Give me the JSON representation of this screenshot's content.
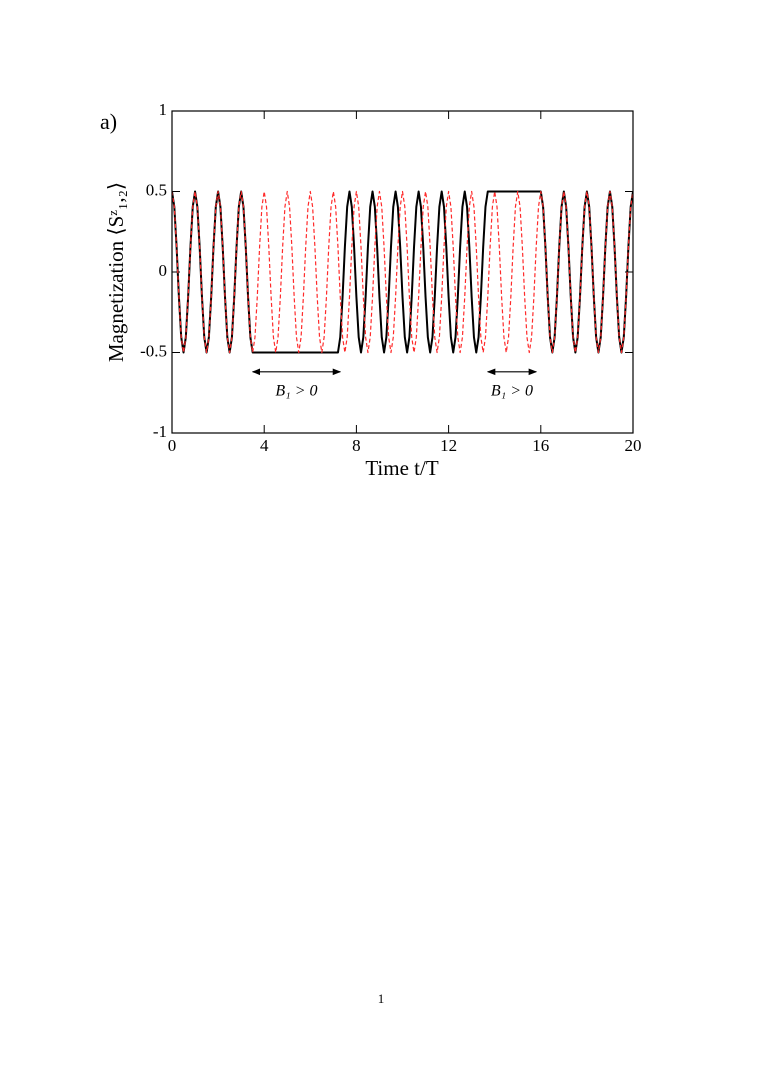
{
  "panel_label": "a)",
  "page_number": "1",
  "chart_data": {
    "type": "line",
    "xlabel": "Time t/T",
    "ylabel": "Magnetization ⟨Sᶻ₁,₂⟩",
    "xlim": [
      0,
      20
    ],
    "ylim": [
      -1,
      1
    ],
    "xticks": [
      0,
      4,
      8,
      12,
      16,
      20
    ],
    "yticks": [
      -1,
      -0.5,
      0,
      0.5,
      1
    ],
    "x": [
      0,
      0.1,
      0.2,
      0.3,
      0.4,
      0.5,
      0.6,
      0.7,
      0.8,
      0.9,
      1,
      1.1,
      1.2,
      1.3,
      1.4,
      1.5,
      1.6,
      1.7,
      1.8,
      1.9,
      2,
      2.1,
      2.2,
      2.3,
      2.4,
      2.5,
      2.6,
      2.7,
      2.8,
      2.9,
      3,
      3.1,
      3.2,
      3.3,
      3.4,
      3.5,
      3.6,
      3.7,
      3.8,
      3.9,
      4,
      4.1,
      4.2,
      4.3,
      4.4,
      4.5,
      4.6,
      4.7,
      4.8,
      4.9,
      5,
      5.1,
      5.2,
      5.3,
      5.4,
      5.5,
      5.6,
      5.7,
      5.8,
      5.9,
      6,
      6.1,
      6.2,
      6.3,
      6.4,
      6.5,
      6.6,
      6.7,
      6.8,
      6.9,
      7,
      7.1,
      7.2,
      7.3,
      7.4,
      7.5,
      7.6,
      7.7,
      7.8,
      7.9,
      8,
      8.1,
      8.2,
      8.3,
      8.4,
      8.5,
      8.6,
      8.7,
      8.8,
      8.9,
      9,
      9.1,
      9.2,
      9.3,
      9.4,
      9.5,
      9.6,
      9.7,
      9.8,
      9.9,
      10,
      10.1,
      10.2,
      10.3,
      10.4,
      10.5,
      10.6,
      10.7,
      10.8,
      10.9,
      11,
      11.1,
      11.2,
      11.3,
      11.4,
      11.5,
      11.6,
      11.7,
      11.8,
      11.9,
      12,
      12.1,
      12.2,
      12.3,
      12.4,
      12.5,
      12.6,
      12.7,
      12.8,
      12.9,
      13,
      13.1,
      13.2,
      13.3,
      13.4,
      13.5,
      13.6,
      13.7,
      13.8,
      13.9,
      14,
      14.1,
      14.2,
      14.3,
      14.4,
      14.5,
      14.6,
      14.7,
      14.8,
      14.9,
      15,
      15.1,
      15.2,
      15.3,
      15.4,
      15.5,
      15.6,
      15.7,
      15.8,
      15.9,
      16,
      16.1,
      16.2,
      16.3,
      16.4,
      16.5,
      16.6,
      16.7,
      16.8,
      16.9,
      17,
      17.1,
      17.2,
      17.3,
      17.4,
      17.5,
      17.6,
      17.7,
      17.8,
      17.9,
      18,
      18.1,
      18.2,
      18.3,
      18.4,
      18.5,
      18.6,
      18.7,
      18.8,
      18.9,
      19,
      19.1,
      19.2,
      19.3,
      19.4,
      19.5,
      19.6,
      19.7,
      19.8,
      19.9,
      20
    ],
    "series": [
      {
        "color": "#000000",
        "dash": false,
        "values": [
          0.5,
          0.405,
          0.155,
          -0.155,
          -0.405,
          -0.5,
          -0.405,
          -0.155,
          0.155,
          0.405,
          0.5,
          0.405,
          0.155,
          -0.155,
          -0.405,
          -0.5,
          -0.405,
          -0.155,
          0.155,
          0.405,
          0.5,
          0.405,
          0.155,
          -0.155,
          -0.405,
          -0.5,
          -0.405,
          -0.155,
          0.155,
          0.405,
          0.5,
          0.405,
          0.155,
          -0.155,
          -0.405,
          -0.5,
          -0.5,
          -0.5,
          -0.5,
          -0.5,
          -0.5,
          -0.5,
          -0.5,
          -0.5,
          -0.5,
          -0.5,
          -0.5,
          -0.5,
          -0.5,
          -0.5,
          -0.5,
          -0.5,
          -0.5,
          -0.5,
          -0.5,
          -0.5,
          -0.5,
          -0.5,
          -0.5,
          -0.5,
          -0.5,
          -0.5,
          -0.5,
          -0.5,
          -0.5,
          -0.5,
          -0.5,
          -0.5,
          -0.5,
          -0.5,
          -0.5,
          -0.5,
          -0.5,
          -0.405,
          -0.155,
          0.155,
          0.405,
          0.5,
          0.405,
          0.155,
          -0.155,
          -0.405,
          -0.5,
          -0.405,
          -0.155,
          0.155,
          0.405,
          0.5,
          0.405,
          0.155,
          -0.155,
          -0.405,
          -0.5,
          -0.405,
          -0.155,
          0.155,
          0.405,
          0.5,
          0.405,
          0.155,
          -0.155,
          -0.405,
          -0.5,
          -0.405,
          -0.155,
          0.155,
          0.405,
          0.5,
          0.405,
          0.155,
          -0.155,
          -0.405,
          -0.5,
          -0.405,
          -0.155,
          0.155,
          0.405,
          0.5,
          0.405,
          0.155,
          -0.155,
          -0.405,
          -0.5,
          -0.405,
          -0.155,
          0.155,
          0.405,
          0.5,
          0.405,
          0.155,
          -0.155,
          -0.405,
          -0.5,
          -0.405,
          -0.155,
          0.155,
          0.405,
          0.5,
          0.5,
          0.5,
          0.5,
          0.5,
          0.5,
          0.5,
          0.5,
          0.5,
          0.5,
          0.5,
          0.5,
          0.5,
          0.5,
          0.5,
          0.5,
          0.5,
          0.5,
          0.5,
          0.5,
          0.5,
          0.5,
          0.5,
          0.5,
          0.405,
          0.155,
          -0.155,
          -0.405,
          -0.5,
          -0.405,
          -0.155,
          0.155,
          0.405,
          0.5,
          0.405,
          0.155,
          -0.155,
          -0.405,
          -0.5,
          -0.405,
          -0.155,
          0.155,
          0.405,
          0.5,
          0.405,
          0.155,
          -0.155,
          -0.405,
          -0.5,
          -0.405,
          -0.155,
          0.155,
          0.405,
          0.5,
          0.405,
          0.155,
          -0.155,
          -0.405,
          -0.5,
          -0.405,
          -0.155,
          0.155,
          0.405,
          0.5
        ]
      },
      {
        "color": "#ff2a2a",
        "dash": true,
        "values": [
          0.5,
          0.405,
          0.155,
          -0.155,
          -0.405,
          -0.5,
          -0.405,
          -0.155,
          0.155,
          0.405,
          0.5,
          0.405,
          0.155,
          -0.155,
          -0.405,
          -0.5,
          -0.405,
          -0.155,
          0.155,
          0.405,
          0.5,
          0.405,
          0.155,
          -0.155,
          -0.405,
          -0.5,
          -0.405,
          -0.155,
          0.155,
          0.405,
          0.5,
          0.405,
          0.155,
          -0.155,
          -0.405,
          -0.5,
          -0.405,
          -0.155,
          0.155,
          0.405,
          0.5,
          0.405,
          0.155,
          -0.155,
          -0.405,
          -0.5,
          -0.405,
          -0.155,
          0.155,
          0.405,
          0.5,
          0.405,
          0.155,
          -0.155,
          -0.405,
          -0.5,
          -0.405,
          -0.155,
          0.155,
          0.405,
          0.5,
          0.405,
          0.155,
          -0.155,
          -0.405,
          -0.5,
          -0.405,
          -0.155,
          0.155,
          0.405,
          0.5,
          0.405,
          0.155,
          -0.155,
          -0.405,
          -0.5,
          -0.405,
          -0.155,
          0.155,
          0.405,
          0.5,
          0.405,
          0.155,
          -0.155,
          -0.405,
          -0.5,
          -0.405,
          -0.155,
          0.155,
          0.405,
          0.5,
          0.405,
          0.155,
          -0.155,
          -0.405,
          -0.5,
          -0.405,
          -0.155,
          0.155,
          0.405,
          0.5,
          0.405,
          0.155,
          -0.155,
          -0.405,
          -0.5,
          -0.405,
          -0.155,
          0.155,
          0.405,
          0.5,
          0.405,
          0.155,
          -0.155,
          -0.405,
          -0.5,
          -0.405,
          -0.155,
          0.155,
          0.405,
          0.5,
          0.405,
          0.155,
          -0.155,
          -0.405,
          -0.5,
          -0.405,
          -0.155,
          0.155,
          0.405,
          0.5,
          0.405,
          0.155,
          -0.155,
          -0.405,
          -0.5,
          -0.405,
          -0.155,
          0.155,
          0.405,
          0.5,
          0.405,
          0.155,
          -0.155,
          -0.405,
          -0.5,
          -0.405,
          -0.155,
          0.155,
          0.405,
          0.5,
          0.405,
          0.155,
          -0.155,
          -0.405,
          -0.5,
          -0.405,
          -0.155,
          0.155,
          0.405,
          0.5,
          0.405,
          0.155,
          -0.155,
          -0.405,
          -0.5,
          -0.405,
          -0.155,
          0.155,
          0.405,
          0.5,
          0.405,
          0.155,
          -0.155,
          -0.405,
          -0.5,
          -0.405,
          -0.155,
          0.155,
          0.405,
          0.5,
          0.405,
          0.155,
          -0.155,
          -0.405,
          -0.5,
          -0.405,
          -0.155,
          0.155,
          0.405,
          0.5,
          0.405,
          0.155,
          -0.155,
          -0.405,
          -0.5,
          -0.405,
          -0.155,
          0.155,
          0.405,
          0.5
        ]
      }
    ],
    "annotations": [
      {
        "text": "B₁ > 0",
        "x": [
          3.5,
          7.3
        ],
        "y": -0.62
      },
      {
        "text": "B₁ > 0",
        "x": [
          13.7,
          15.8
        ],
        "y": -0.62
      }
    ]
  }
}
